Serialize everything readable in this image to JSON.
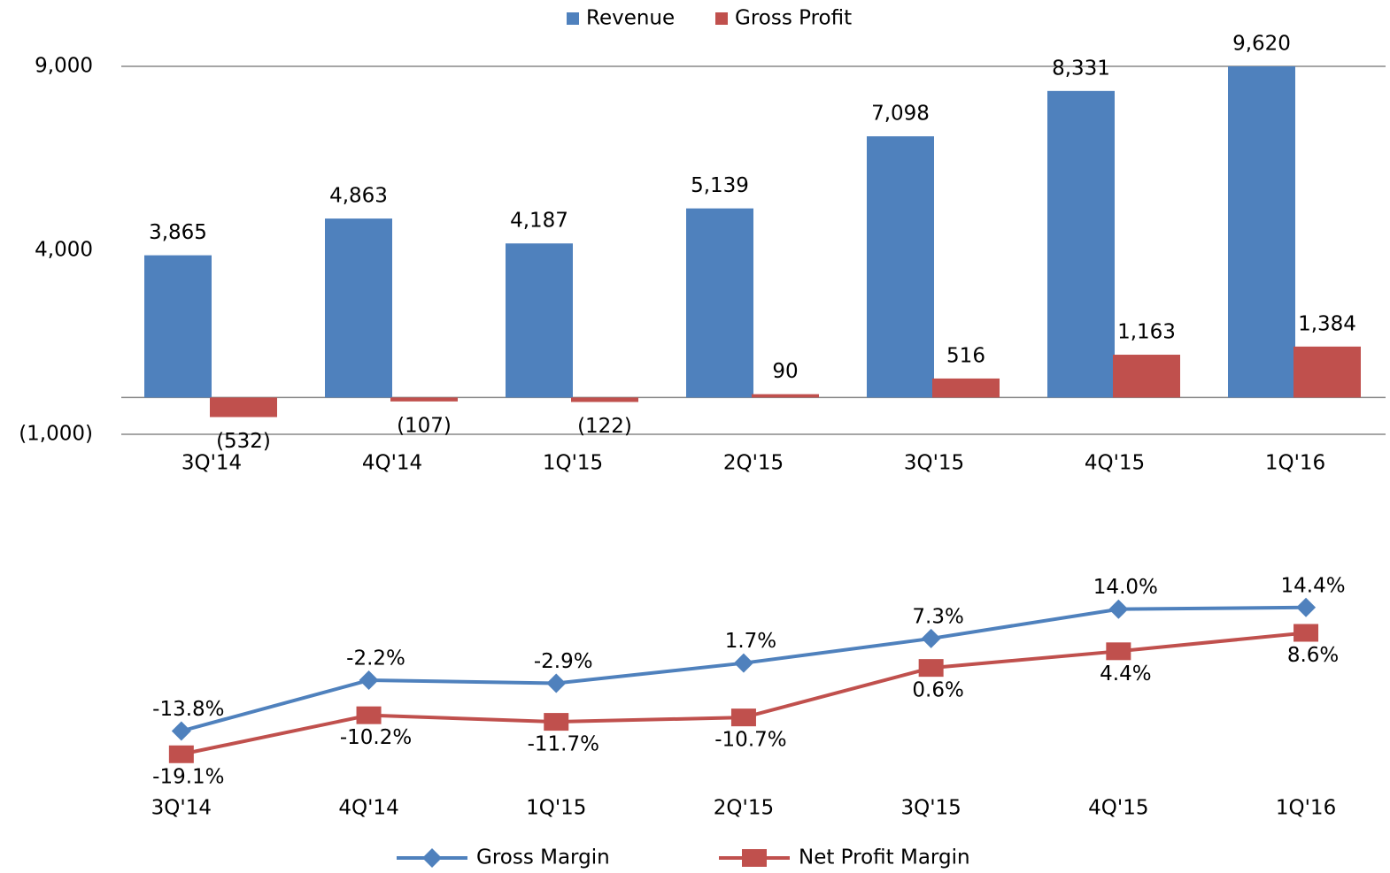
{
  "chart_data": [
    {
      "type": "bar",
      "categories": [
        "3Q'14",
        "4Q'14",
        "1Q'15",
        "2Q'15",
        "3Q'15",
        "4Q'15",
        "1Q'16"
      ],
      "series": [
        {
          "name": "Revenue",
          "color": "#4f81bd",
          "values": [
            3865,
            4863,
            4187,
            5139,
            7098,
            8331,
            9620
          ],
          "value_labels": [
            "3,865",
            "4,863",
            "4,187",
            "5,139",
            "7,098",
            "8,331",
            "9,620"
          ]
        },
        {
          "name": "Gross Profit",
          "color": "#c0504d",
          "values": [
            -532,
            -107,
            -122,
            90,
            516,
            1163,
            1384
          ],
          "value_labels": [
            "(532)",
            "(107)",
            "(122)",
            "90",
            "516",
            "1,163",
            "1,384"
          ]
        }
      ],
      "ylim": [
        -1000,
        9000
      ],
      "yticks": [
        {
          "value": -1000,
          "label": "(1,000)"
        },
        {
          "value": 4000,
          "label": "4,000"
        },
        {
          "value": 9000,
          "label": "9,000"
        }
      ],
      "negative_color": "#ff0000",
      "legend": "top"
    },
    {
      "type": "line",
      "categories": [
        "3Q'14",
        "4Q'14",
        "1Q'15",
        "2Q'15",
        "3Q'15",
        "4Q'15",
        "1Q'16"
      ],
      "series": [
        {
          "name": "Gross Margin",
          "color": "#4f81bd",
          "marker": "diamond",
          "values": [
            -13.8,
            -2.2,
            -2.9,
            1.7,
            7.3,
            14.0,
            14.4
          ],
          "value_labels": [
            "-13.8%",
            "-2.2%",
            "-2.9%",
            "1.7%",
            "7.3%",
            "14.0%",
            "14.4%"
          ]
        },
        {
          "name": "Net Profit Margin",
          "color": "#c0504d",
          "marker": "square",
          "values": [
            -19.1,
            -10.2,
            -11.7,
            -10.7,
            0.6,
            4.4,
            8.6
          ],
          "value_labels": [
            "-19.1%",
            "-10.2%",
            "-11.7%",
            "-10.7%",
            "0.6%",
            "4.4%",
            "8.6%"
          ]
        }
      ],
      "ylim": [
        -25,
        20
      ],
      "legend": "bottom"
    }
  ]
}
